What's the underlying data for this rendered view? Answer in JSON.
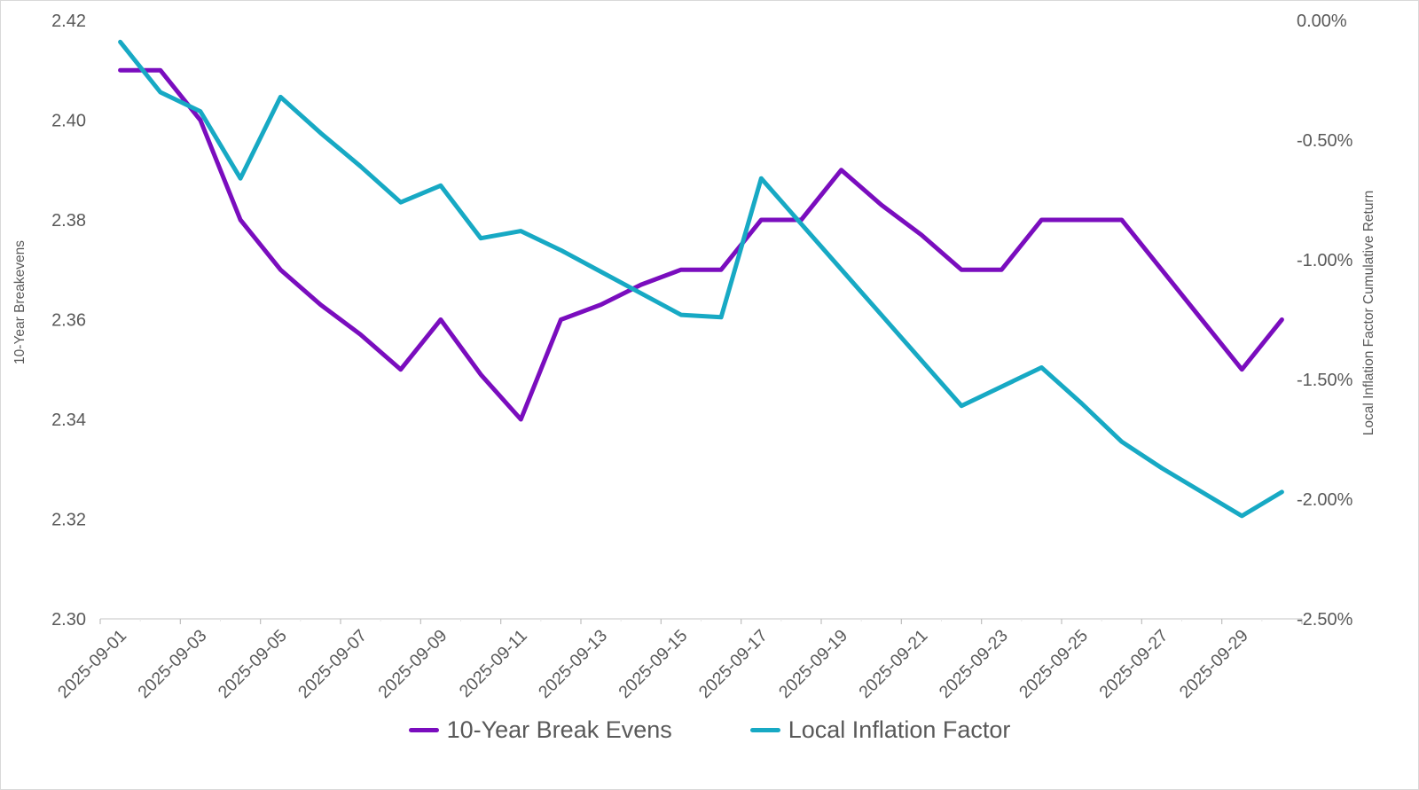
{
  "chart_data": {
    "type": "line",
    "title": "",
    "x": [
      "2025-09-01",
      "2025-09-02",
      "2025-09-03",
      "2025-09-04",
      "2025-09-05",
      "2025-09-06",
      "2025-09-07",
      "2025-09-08",
      "2025-09-09",
      "2025-09-10",
      "2025-09-11",
      "2025-09-12",
      "2025-09-13",
      "2025-09-14",
      "2025-09-15",
      "2025-09-16",
      "2025-09-17",
      "2025-09-18",
      "2025-09-19",
      "2025-09-20",
      "2025-09-21",
      "2025-09-22",
      "2025-09-23",
      "2025-09-24",
      "2025-09-25",
      "2025-09-26",
      "2025-09-27",
      "2025-09-28",
      "2025-09-29",
      "2025-09-30"
    ],
    "x_label_every": 2,
    "x_tick_labels": [
      "2025-09-01",
      "2025-09-03",
      "2025-09-05",
      "2025-09-07",
      "2025-09-09",
      "2025-09-11",
      "2025-09-13",
      "2025-09-15",
      "2025-09-17",
      "2025-09-19",
      "2025-09-21",
      "2025-09-23",
      "2025-09-25",
      "2025-09-27",
      "2025-09-29"
    ],
    "series": [
      {
        "name": "10-Year Break Evens",
        "axis": "left",
        "color": "#7A0DBE",
        "values": [
          2.41,
          2.41,
          2.4,
          2.38,
          2.37,
          2.363,
          2.357,
          2.35,
          2.36,
          2.349,
          2.34,
          2.36,
          2.363,
          2.367,
          2.37,
          2.37,
          2.38,
          2.38,
          2.39,
          2.383,
          2.377,
          2.37,
          2.37,
          2.38,
          2.38,
          2.38,
          2.37,
          2.36,
          2.35,
          2.36
        ]
      },
      {
        "name": "Local Inflation Factor",
        "axis": "right",
        "color": "#17A9C4",
        "values": [
          -0.09,
          -0.3,
          -0.38,
          -0.66,
          -0.32,
          -0.47,
          -0.61,
          -0.76,
          -0.69,
          -0.91,
          -0.88,
          -0.96,
          -1.05,
          -1.14,
          -1.23,
          -1.24,
          -0.66,
          -0.85,
          -1.04,
          -1.23,
          -1.42,
          -1.61,
          -1.53,
          -1.45,
          -1.6,
          -1.76,
          -1.87,
          -1.97,
          -2.07,
          -1.97
        ]
      }
    ],
    "left_axis": {
      "title": "10-Year Breakevens",
      "min": 2.3,
      "max": 2.42,
      "tick_labels": [
        "2.42",
        "2.40",
        "2.38",
        "2.36",
        "2.34",
        "2.32",
        "2.30"
      ],
      "tick_values": [
        2.42,
        2.4,
        2.38,
        2.36,
        2.34,
        2.32,
        2.3
      ]
    },
    "right_axis": {
      "title": "Local Inflation Factor Cumulative Return",
      "min": -2.5,
      "max": 0.0,
      "tick_labels": [
        "0.00%",
        "-0.50%",
        "-1.00%",
        "-1.50%",
        "-2.00%",
        "-2.50%"
      ],
      "tick_values": [
        0.0,
        -0.5,
        -1.0,
        -1.5,
        -2.0,
        -2.5
      ]
    },
    "legend": {
      "position": "bottom",
      "entries": [
        "10-Year Break Evens",
        "Local Inflation Factor"
      ]
    },
    "grid": false,
    "colors": {
      "background": "#ffffff",
      "label": "#595959",
      "axis_line": "#d9d9d9",
      "tick": "#bfbfbf",
      "minor_tick": "#e8e8e8"
    }
  }
}
